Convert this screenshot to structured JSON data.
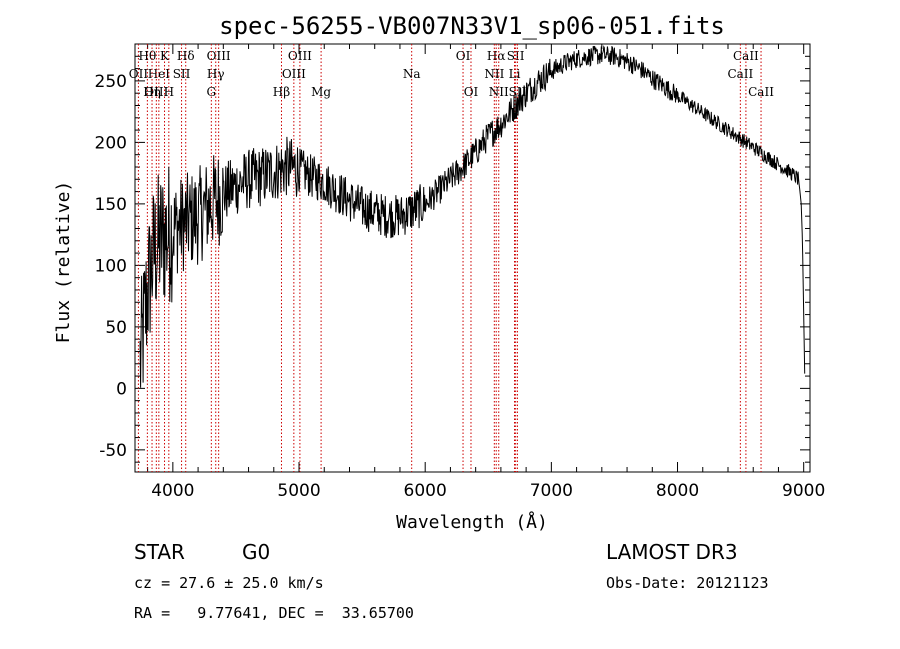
{
  "chart_data": {
    "type": "line",
    "title": "spec-56255-VB007N33V1_sp06-051.fits",
    "xlabel": "Wavelength (Å)",
    "ylabel": "Flux (relative)",
    "xlim": [
      3700,
      9050
    ],
    "ylim": [
      -68,
      280
    ],
    "xticks": [
      4000,
      5000,
      6000,
      7000,
      8000,
      9000
    ],
    "yticks": [
      -50,
      0,
      50,
      100,
      150,
      200,
      250
    ],
    "line_color": "#000000",
    "marker_color": "#cc0000",
    "continuum": [
      [
        3740,
        20
      ],
      [
        3800,
        80
      ],
      [
        3850,
        110
      ],
      [
        3900,
        120
      ],
      [
        3950,
        125
      ],
      [
        4000,
        130
      ],
      [
        4100,
        135
      ],
      [
        4200,
        140
      ],
      [
        4300,
        150
      ],
      [
        4400,
        158
      ],
      [
        4500,
        165
      ],
      [
        4600,
        170
      ],
      [
        4700,
        172
      ],
      [
        4800,
        176
      ],
      [
        4900,
        180
      ],
      [
        5000,
        178
      ],
      [
        5100,
        172
      ],
      [
        5200,
        168
      ],
      [
        5300,
        160
      ],
      [
        5400,
        153
      ],
      [
        5500,
        147
      ],
      [
        5600,
        143
      ],
      [
        5700,
        140
      ],
      [
        5800,
        140
      ],
      [
        5900,
        145
      ],
      [
        6000,
        150
      ],
      [
        6100,
        160
      ],
      [
        6200,
        170
      ],
      [
        6300,
        180
      ],
      [
        6400,
        192
      ],
      [
        6500,
        205
      ],
      [
        6600,
        215
      ],
      [
        6700,
        228
      ],
      [
        6800,
        240
      ],
      [
        6900,
        250
      ],
      [
        7000,
        258
      ],
      [
        7100,
        264
      ],
      [
        7200,
        268
      ],
      [
        7300,
        270
      ],
      [
        7400,
        271
      ],
      [
        7500,
        270
      ],
      [
        7600,
        266
      ],
      [
        7700,
        260
      ],
      [
        7800,
        252
      ],
      [
        7900,
        245
      ],
      [
        8000,
        238
      ],
      [
        8100,
        231
      ],
      [
        8200,
        224
      ],
      [
        8300,
        217
      ],
      [
        8400,
        210
      ],
      [
        8500,
        203
      ],
      [
        8600,
        196
      ],
      [
        8700,
        189
      ],
      [
        8800,
        182
      ],
      [
        8900,
        175
      ],
      [
        8960,
        170
      ],
      [
        8980,
        150
      ],
      [
        8990,
        120
      ],
      [
        9000,
        60
      ],
      [
        9010,
        0
      ]
    ],
    "noise_bands": [
      [
        3700,
        4000,
        60
      ],
      [
        4000,
        4400,
        40
      ],
      [
        4400,
        5000,
        25
      ],
      [
        5000,
        6000,
        18
      ],
      [
        6000,
        7000,
        12
      ],
      [
        7000,
        8000,
        8
      ],
      [
        8000,
        8960,
        6
      ]
    ],
    "lines": [
      {
        "name": "Hθ",
        "wl": 3798,
        "row": 0
      },
      {
        "name": "K",
        "wl": 3934,
        "row": 0
      },
      {
        "name": "Hδ",
        "wl": 4102,
        "row": 0
      },
      {
        "name": "OIII",
        "wl": 4363,
        "row": 0
      },
      {
        "name": "OIII",
        "wl": 5007,
        "row": 0
      },
      {
        "name": "OI",
        "wl": 6300,
        "row": 0
      },
      {
        "name": "Hα",
        "wl": 6563,
        "row": 0
      },
      {
        "name": "SII",
        "wl": 6717,
        "row": 0
      },
      {
        "name": "CaII",
        "wl": 8542,
        "row": 0
      },
      {
        "name": "OII",
        "wl": 3727,
        "row": 1
      },
      {
        "name": "HeI",
        "wl": 3889,
        "row": 1
      },
      {
        "name": "SII",
        "wl": 4069,
        "row": 1
      },
      {
        "name": "Hγ",
        "wl": 4340,
        "row": 1
      },
      {
        "name": "OIII",
        "wl": 4959,
        "row": 1
      },
      {
        "name": "Na",
        "wl": 5893,
        "row": 1
      },
      {
        "name": "NII",
        "wl": 6548,
        "row": 1
      },
      {
        "name": "Li",
        "wl": 6708,
        "row": 1
      },
      {
        "name": "CaII",
        "wl": 8498,
        "row": 1
      },
      {
        "name": "OIII",
        "wl": 3869,
        "row": 2
      },
      {
        "name": "Hη",
        "wl": 3835,
        "row": 2
      },
      {
        "name": "H",
        "wl": 3968,
        "row": 2
      },
      {
        "name": "G",
        "wl": 4305,
        "row": 2
      },
      {
        "name": "Hβ",
        "wl": 4861,
        "row": 2
      },
      {
        "name": "Mg",
        "wl": 5175,
        "row": 2
      },
      {
        "name": "OI",
        "wl": 6363,
        "row": 2
      },
      {
        "name": "NII",
        "wl": 6583,
        "row": 2
      },
      {
        "name": "SII",
        "wl": 6731,
        "row": 2
      },
      {
        "name": "CaII",
        "wl": 8662,
        "row": 2
      }
    ]
  },
  "info": {
    "type_label": "STAR",
    "subclass": "G0",
    "survey": "LAMOST DR3",
    "cz": "cz = 27.6 ± 25.0 km/s",
    "obs_date": "Obs-Date: 20121123",
    "radec": "RA =   9.77641, DEC =  33.65700"
  }
}
